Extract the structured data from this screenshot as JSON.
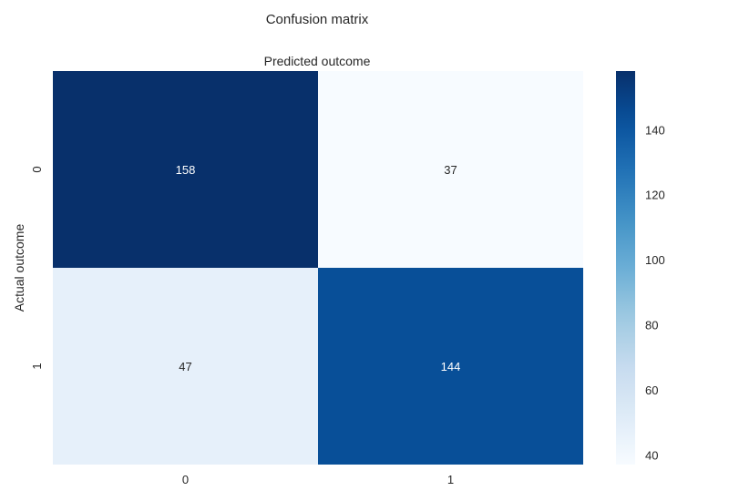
{
  "chart_data": {
    "type": "heatmap",
    "title": "Confusion matrix",
    "xlabel": "Predicted outcome",
    "ylabel": "Actual outcome",
    "x_categories": [
      "0",
      "1"
    ],
    "y_categories": [
      "0",
      "1"
    ],
    "values": [
      [
        158,
        37
      ],
      [
        47,
        144
      ]
    ],
    "colormap": "Blues",
    "colorbar": {
      "min": 37,
      "max": 158,
      "ticks": [
        40,
        60,
        80,
        100,
        120,
        140
      ]
    },
    "grid": false,
    "colors": {
      "dark": "#08306b",
      "mid": "#4292c6",
      "light": "#f7fbff",
      "text_light": "#ffffff",
      "text_dark": "#262626"
    }
  }
}
